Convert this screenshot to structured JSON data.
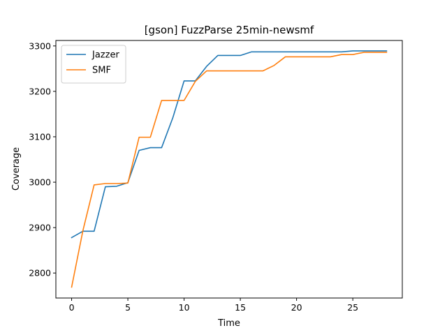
{
  "chart_data": {
    "type": "line",
    "title": "[gson] FuzzParse 25min-newsmf",
    "xlabel": "Time",
    "ylabel": "Coverage",
    "xlim": [
      -1.4,
      29.4
    ],
    "ylim": [
      2745,
      3312
    ],
    "xticks": [
      0,
      5,
      10,
      15,
      20,
      25
    ],
    "yticks": [
      2800,
      2900,
      3000,
      3100,
      3200,
      3300
    ],
    "grid": false,
    "legend_position": "top-left",
    "x": [
      0,
      1,
      2,
      3,
      4,
      5,
      6,
      7,
      8,
      9,
      10,
      11,
      12,
      13,
      14,
      15,
      16,
      17,
      18,
      19,
      20,
      21,
      22,
      23,
      24,
      25,
      26,
      27,
      28
    ],
    "series": [
      {
        "name": "Jazzer",
        "color": "#1f77b4",
        "values": [
          2878,
          2892,
          2892,
          2990,
          2991,
          2999,
          3070,
          3076,
          3076,
          3142,
          3223,
          3223,
          3255,
          3279,
          3279,
          3279,
          3287,
          3287,
          3287,
          3287,
          3287,
          3287,
          3287,
          3287,
          3287,
          3289,
          3289,
          3289,
          3289
        ]
      },
      {
        "name": "SMF",
        "color": "#ff7f0e",
        "values": [
          2769,
          2893,
          2994,
          2997,
          2997,
          2998,
          3099,
          3099,
          3180,
          3180,
          3180,
          3222,
          3245,
          3245,
          3245,
          3245,
          3245,
          3245,
          3257,
          3276,
          3276,
          3276,
          3276,
          3276,
          3281,
          3281,
          3286,
          3286,
          3286
        ]
      }
    ]
  }
}
